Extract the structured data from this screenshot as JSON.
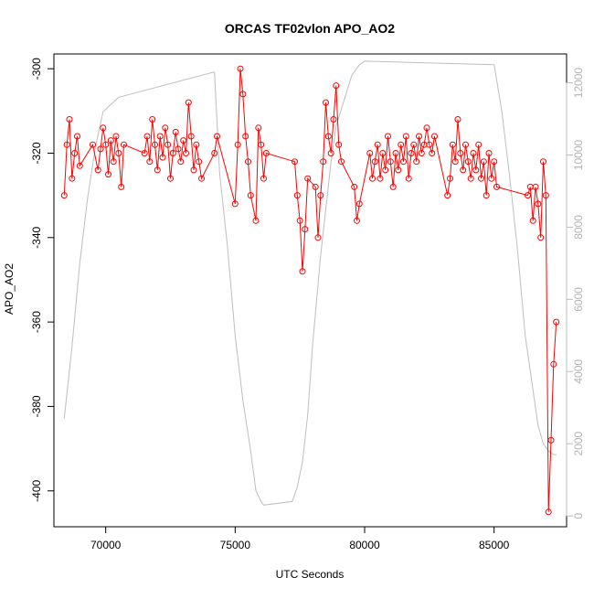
{
  "chart_data": {
    "type": "line",
    "title": "ORCAS TF02vlon APO_AO2",
    "xlabel": "UTC Seconds",
    "ylabel": "APO_AO2",
    "y2label": "",
    "xlim": [
      68000,
      87800
    ],
    "ylim": [
      -408.5,
      -296.5
    ],
    "y2lim": [
      -300,
      12800
    ],
    "xticks": [
      70000,
      75000,
      80000,
      85000
    ],
    "yticks": [
      -300,
      -320,
      -340,
      -360,
      -380,
      -400
    ],
    "y2ticks": [
      0,
      2000,
      4000,
      6000,
      8000,
      10000,
      12000
    ],
    "colors": {
      "apo": "#ff0000",
      "altitude": "#bebebe"
    },
    "series": [
      {
        "axis": "right",
        "style": "line",
        "x": [
          68400,
          68700,
          69000,
          69300,
          69600,
          69900,
          70500,
          74200,
          74400,
          74700,
          75000,
          75300,
          75600,
          75800,
          76000,
          76100,
          77200,
          77400,
          77600,
          77800,
          78000,
          78300,
          78700,
          78900,
          79200,
          79500,
          79800,
          80000,
          85000,
          85300,
          85600,
          85900,
          86200,
          86600,
          86700,
          86900,
          87100,
          87300,
          87400
        ],
        "y": [
          2700,
          4700,
          7000,
          8800,
          10200,
          11200,
          11600,
          12300,
          9500,
          7500,
          5000,
          3200,
          1800,
          700,
          400,
          300,
          400,
          800,
          1500,
          2800,
          4800,
          7200,
          9800,
          10800,
          11500,
          12200,
          12500,
          12600,
          12500,
          11200,
          9400,
          7400,
          5000,
          3000,
          2500,
          2000,
          1800,
          1700,
          1700
        ]
      },
      {
        "axis": "left",
        "style": "line+points",
        "x": [
          68400,
          68500,
          68600,
          68700,
          68800,
          68900,
          69000,
          69500,
          69700,
          69800,
          69900,
          70000,
          70100,
          70200,
          70300,
          70400,
          70500,
          70600,
          70700,
          71500,
          71600,
          71700,
          71800,
          71900,
          72000,
          72100,
          72200,
          72300,
          72400,
          72500,
          72600,
          72700,
          72800,
          72900,
          73000,
          73100,
          73200,
          73300,
          73400,
          73500,
          73600,
          73700,
          74200,
          74300,
          75000,
          75100,
          75200,
          75300,
          75400,
          75500,
          75600,
          75800,
          75900,
          76000,
          76100,
          76200,
          77300,
          77400,
          77500,
          77600,
          77700,
          77800,
          78100,
          78200,
          78300,
          78400,
          78500,
          78600,
          78700,
          78800,
          78900,
          79000,
          79100,
          79600,
          79700,
          79800,
          80200,
          80300,
          80400,
          80500,
          80600,
          80700,
          80800,
          80900,
          81000,
          81100,
          81200,
          81300,
          81400,
          81500,
          81600,
          81700,
          81800,
          81900,
          82000,
          82100,
          82200,
          82300,
          82400,
          82500,
          82600,
          82700,
          83200,
          83300,
          83400,
          83500,
          83600,
          83700,
          83800,
          83900,
          84000,
          84100,
          84200,
          84300,
          84400,
          84500,
          84600,
          84700,
          84800,
          84900,
          85000,
          85100,
          86300,
          86400,
          86500,
          86600,
          86700,
          86800,
          86900,
          87000,
          87100,
          87200,
          87300,
          87400
        ],
        "y": [
          -330,
          -318,
          -312,
          -326,
          -320,
          -316,
          -323,
          -318,
          -324,
          -319,
          -314,
          -318,
          -325,
          -317,
          -322,
          -316,
          -320,
          -328,
          -318,
          -320,
          -316,
          -322,
          -312,
          -318,
          -324,
          -316,
          -321,
          -314,
          -318,
          -326,
          -320,
          -315,
          -319,
          -322,
          -317,
          -320,
          -308,
          -316,
          -324,
          -318,
          -322,
          -326,
          -320,
          -316,
          -332,
          -318,
          -300,
          -306,
          -316,
          -322,
          -330,
          -336,
          -314,
          -318,
          -326,
          -320,
          -322,
          -330,
          -336,
          -348,
          -338,
          -326,
          -328,
          -340,
          -330,
          -322,
          -308,
          -316,
          -320,
          -312,
          -304,
          -318,
          -322,
          -328,
          -336,
          -332,
          -320,
          -326,
          -322,
          -318,
          -326,
          -320,
          -324,
          -316,
          -322,
          -328,
          -320,
          -324,
          -318,
          -322,
          -316,
          -326,
          -320,
          -318,
          -322,
          -316,
          -320,
          -318,
          -314,
          -318,
          -320,
          -316,
          -330,
          -326,
          -318,
          -322,
          -312,
          -320,
          -324,
          -318,
          -322,
          -326,
          -320,
          -324,
          -318,
          -326,
          -322,
          -330,
          -320,
          -326,
          -322,
          -328,
          -330,
          -328,
          -336,
          -328,
          -332,
          -340,
          -322,
          -330,
          -405,
          -388,
          -370,
          -360
        ]
      }
    ]
  }
}
